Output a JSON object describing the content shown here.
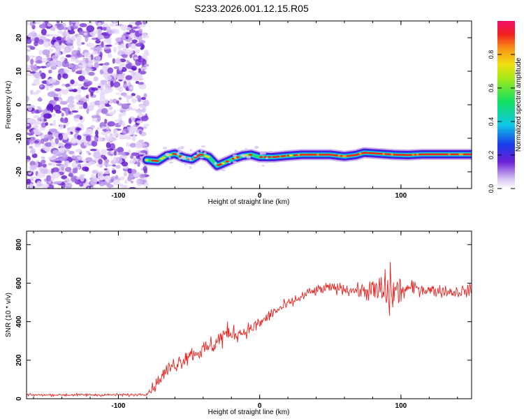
{
  "figure": {
    "title": "S233.2026.001.12.15.R05"
  },
  "chart_data": [
    {
      "type": "heatmap",
      "xlabel": "Height of straight line (km)",
      "ylabel": "Frequency (Hz)",
      "xlim": [
        -165,
        150
      ],
      "ylim": [
        -25,
        25
      ],
      "x_ticks": [
        -100,
        0,
        100
      ],
      "y_ticks": [
        -20,
        -10,
        0,
        10,
        20
      ],
      "noise_region_x": [
        -165,
        -80
      ],
      "signal_start_x": -80,
      "ridge_points": [
        {
          "x": -80,
          "y": -16.5
        },
        {
          "x": -72,
          "y": -16.8
        },
        {
          "x": -66,
          "y": -15.2
        },
        {
          "x": -60,
          "y": -14.6
        },
        {
          "x": -54,
          "y": -15.8
        },
        {
          "x": -48,
          "y": -16.3
        },
        {
          "x": -42,
          "y": -14.8
        },
        {
          "x": -36,
          "y": -15.6
        },
        {
          "x": -30,
          "y": -18.2
        },
        {
          "x": -24,
          "y": -17.1
        },
        {
          "x": -18,
          "y": -16.0
        },
        {
          "x": -12,
          "y": -15.2
        },
        {
          "x": -6,
          "y": -14.9
        },
        {
          "x": 0,
          "y": -15.6
        },
        {
          "x": 10,
          "y": -15.6
        },
        {
          "x": 20,
          "y": -15.2
        },
        {
          "x": 30,
          "y": -14.9
        },
        {
          "x": 50,
          "y": -14.9
        },
        {
          "x": 60,
          "y": -15.4
        },
        {
          "x": 68,
          "y": -15.0
        },
        {
          "x": 74,
          "y": -14.3
        },
        {
          "x": 85,
          "y": -14.6
        },
        {
          "x": 95,
          "y": -14.9
        },
        {
          "x": 105,
          "y": -15.0
        },
        {
          "x": 115,
          "y": -14.8
        },
        {
          "x": 150,
          "y": -14.8
        }
      ],
      "colorbar": {
        "label": "Normalized spectral amplitude",
        "ticks": [
          "0.0",
          "0.2",
          "0.4",
          "0.6",
          "0.8"
        ],
        "range": [
          0,
          1
        ]
      }
    },
    {
      "type": "line",
      "xlabel": "Height of straight line (km)",
      "ylabel": "SNR (10 * v/v)",
      "xlim": [
        -165,
        150
      ],
      "ylim": [
        0,
        870
      ],
      "x_ticks": [
        -100,
        0,
        100
      ],
      "y_ticks": [
        0,
        200,
        400,
        600,
        800
      ],
      "series": [
        {
          "color": "#e8231e",
          "x": [
            -165,
            -150,
            -135,
            -120,
            -105,
            -90,
            -80,
            -75,
            -70,
            -65,
            -60,
            -55,
            -50,
            -45,
            -40,
            -35,
            -30,
            -25,
            -20,
            -15,
            -10,
            -5,
            0,
            5,
            10,
            15,
            20,
            25,
            30,
            35,
            40,
            45,
            50,
            55,
            60,
            65,
            70,
            75,
            80,
            85,
            90,
            95,
            100,
            105,
            110,
            115,
            120,
            125,
            130,
            135,
            140,
            145,
            150
          ],
          "y": [
            20,
            20,
            20,
            20,
            20,
            20,
            25,
            60,
            110,
            150,
            180,
            200,
            230,
            240,
            250,
            270,
            300,
            330,
            340,
            340,
            350,
            370,
            390,
            420,
            450,
            470,
            490,
            510,
            530,
            550,
            560,
            570,
            575,
            575,
            570,
            565,
            560,
            560,
            560,
            555,
            550,
            555,
            560,
            570,
            575,
            570,
            565,
            560,
            560,
            555,
            555,
            560,
            560
          ],
          "spread": [
            8,
            8,
            10,
            10,
            10,
            10,
            10,
            40,
            50,
            60,
            60,
            60,
            60,
            60,
            70,
            70,
            80,
            90,
            60,
            60,
            50,
            50,
            50,
            45,
            45,
            40,
            40,
            40,
            40,
            40,
            40,
            40,
            40,
            40,
            40,
            45,
            50,
            60,
            90,
            150,
            200,
            170,
            90,
            60,
            50,
            50,
            45,
            45,
            45,
            45,
            45,
            45,
            45
          ]
        }
      ]
    }
  ]
}
